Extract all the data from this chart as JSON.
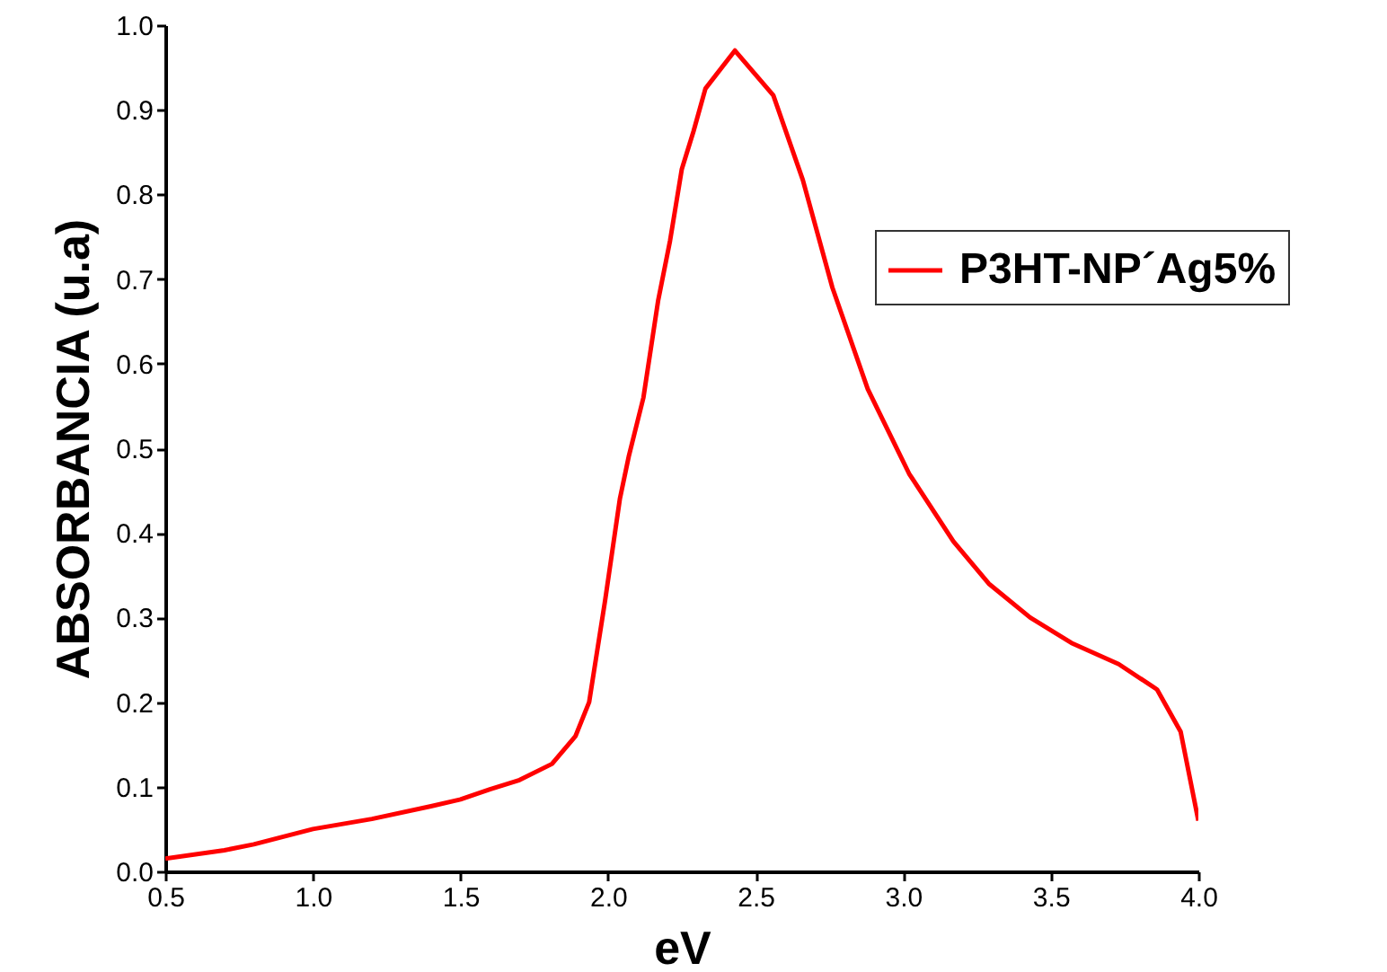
{
  "chart_data": {
    "type": "line",
    "xlabel": "eV",
    "ylabel": "ABSORBANCIA (u.a)",
    "xlim": [
      0.5,
      4.0
    ],
    "ylim": [
      0,
      1.0
    ],
    "xticks": [
      0.5,
      {
        "value": 1,
        "label": "1.0"
      },
      1.5,
      {
        "value": 2,
        "label": "2.0"
      },
      2.5,
      {
        "value": 3,
        "label": "3.0"
      },
      3.5,
      {
        "value": 4,
        "label": "4.0"
      }
    ],
    "yticks": [
      {
        "value": 0,
        "label": "0.0"
      },
      0.1,
      0.2,
      0.3,
      0.4,
      0.5,
      0.6,
      0.7,
      0.8,
      0.9,
      {
        "value": 1,
        "label": "1.0"
      }
    ],
    "grid": false,
    "legend": "top right",
    "marker": "none",
    "line_style": "solid",
    "series": [
      {
        "name": "P3HT-NP´Ag5%",
        "color": "#ff0000",
        "x": [
          0.5,
          0.7,
          0.8,
          1.0,
          1.2,
          1.4,
          1.5,
          1.6,
          1.7,
          1.81,
          1.89,
          1.936,
          1.99,
          2.04,
          2.07,
          2.12,
          2.17,
          2.21,
          2.25,
          2.29,
          2.33,
          2.43,
          2.56,
          2.66,
          2.76,
          2.88,
          3.02,
          3.17,
          3.29,
          3.43,
          3.57,
          3.73,
          3.86,
          3.94,
          4.0
        ],
        "values": [
          0.015,
          0.025,
          0.032,
          0.05,
          0.062,
          0.077,
          0.085,
          0.097,
          0.108,
          0.127,
          0.16,
          0.2,
          0.32,
          0.44,
          0.49,
          0.56,
          0.675,
          0.745,
          0.83,
          0.875,
          0.925,
          0.97,
          0.917,
          0.817,
          0.69,
          0.57,
          0.47,
          0.39,
          0.34,
          0.3,
          0.27,
          0.245,
          0.215,
          0.165,
          0.06
        ]
      }
    ]
  }
}
